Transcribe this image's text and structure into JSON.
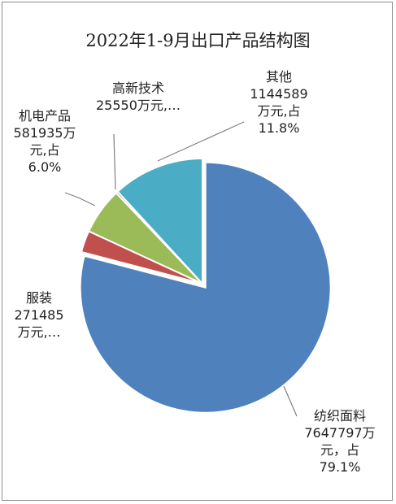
{
  "chart_data": {
    "type": "pie",
    "title": "2022年1-9月出口产品结构图",
    "slices": [
      {
        "name": "纺织面料",
        "value": 7647797,
        "percent": 79.1,
        "color": "#4f81bd",
        "label_lines": [
          "纺织面料",
          "7647797万",
          "元，占",
          "79.1%"
        ]
      },
      {
        "name": "服装",
        "value": 271485,
        "percent": 2.8,
        "color": "#c0504d",
        "label_lines": [
          "服装",
          "271485",
          "万元,…"
        ]
      },
      {
        "name": "机电产品",
        "value": 581935,
        "percent": 6.0,
        "color": "#9bbb59",
        "label_lines": [
          "机电产品",
          "581935万",
          "元,占",
          "6.0%"
        ]
      },
      {
        "name": "高新技术",
        "value": 25550,
        "percent": 0.3,
        "color": "#8064a2",
        "label_lines": [
          "高新技术",
          "25550万元,…"
        ]
      },
      {
        "name": "其他",
        "value": 1144589,
        "percent": 11.8,
        "color": "#4bacc6",
        "label_lines": [
          "其他",
          "1144589",
          "万元,占",
          "11.8%"
        ]
      }
    ],
    "legend": "none"
  }
}
